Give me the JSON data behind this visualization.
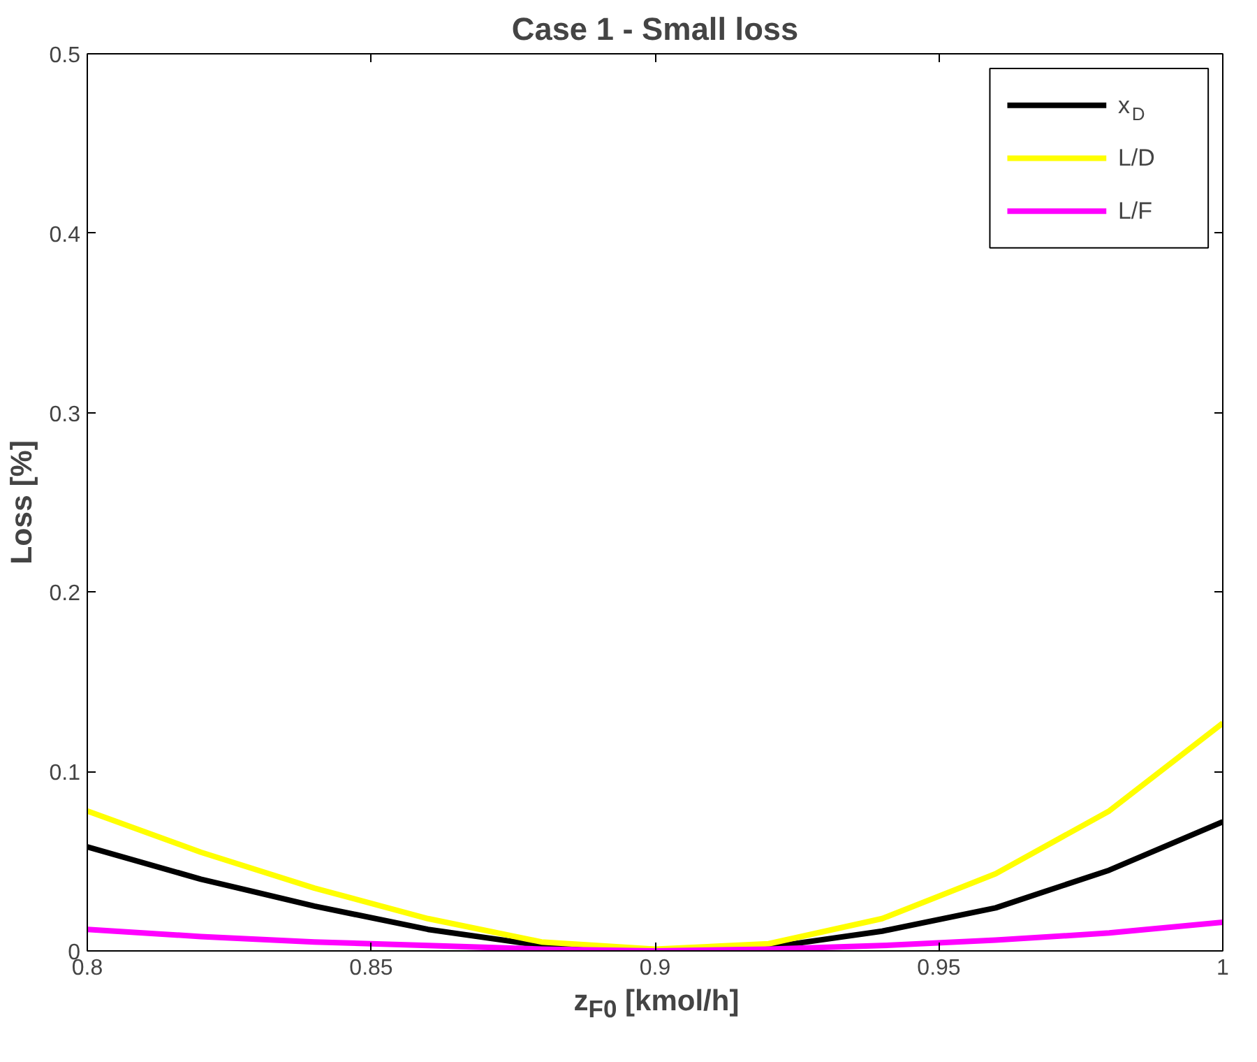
{
  "chart_data": {
    "type": "line",
    "title": "Case 1 - Small loss",
    "xlabel": "z$_{F0}$ [kmol/h]",
    "ylabel": "Loss [%]",
    "x": [
      0.8,
      0.82,
      0.84,
      0.86,
      0.88,
      0.9,
      0.92,
      0.94,
      0.96,
      0.98,
      1.0
    ],
    "series": [
      {
        "name": "x$_{D}$",
        "color": "#000000",
        "values": [
          0.058,
          0.04,
          0.025,
          0.012,
          0.003,
          0.0,
          0.002,
          0.011,
          0.024,
          0.045,
          0.072
        ]
      },
      {
        "name": "L/D",
        "color": "#ffff00",
        "values": [
          0.078,
          0.055,
          0.035,
          0.018,
          0.005,
          0.001,
          0.004,
          0.018,
          0.043,
          0.078,
          0.127
        ]
      },
      {
        "name": "L/F",
        "color": "#ff00ff",
        "values": [
          0.012,
          0.008,
          0.005,
          0.003,
          0.001,
          0.0,
          0.001,
          0.003,
          0.006,
          0.01,
          0.016
        ]
      }
    ],
    "xlim": [
      0.8,
      1.0
    ],
    "xticks": [
      0.8,
      0.85,
      0.9,
      0.95,
      1
    ],
    "ylim": [
      0,
      0.5
    ],
    "yticks": [
      0,
      0.1,
      0.2,
      0.3,
      0.4,
      0.5
    ],
    "grid": false,
    "legend": "top right",
    "marker": "none",
    "line_style": "solid"
  }
}
